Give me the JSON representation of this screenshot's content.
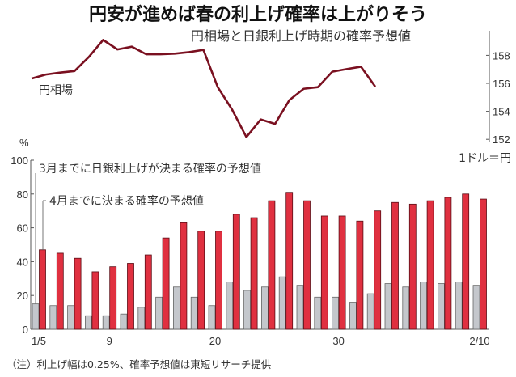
{
  "title": "円安が進めば春の利上げ確率は上がりそう",
  "subtitle": "円相場と日銀利上げ時期の確率予想値",
  "note": "（注）利上げ幅は0.25%、確率予想値は東短リサーチ提供",
  "chart_data": [
    {
      "type": "line",
      "series": [
        {
          "name": "円相場",
          "values": [
            156.34,
            156.63,
            156.77,
            156.88,
            157.88,
            159.1,
            158.42,
            158.62,
            158.08,
            158.08,
            158.12,
            158.23,
            158.39,
            155.73,
            154.13,
            152.16,
            153.42,
            153.1,
            154.8,
            155.61,
            155.73,
            156.83,
            157.02,
            157.19,
            155.76
          ],
          "color": "#7a1020"
        }
      ],
      "yaxis": {
        "side": "right",
        "ylim": [
          151.6,
          160
        ],
        "ticks": [
          152,
          154,
          156,
          158
        ],
        "unit_label": "1ドル＝円"
      },
      "grid": false
    },
    {
      "type": "bar",
      "x_tick_labels": [
        {
          "index": 0,
          "label": "1/5"
        },
        {
          "index": 4,
          "label": "9"
        },
        {
          "index": 10,
          "label": "20"
        },
        {
          "index": 17,
          "label": "30"
        },
        {
          "index": 25,
          "label": "2/10"
        }
      ],
      "series": [
        {
          "name": "3月までに日銀利上げが決まる確率の予想値",
          "color": "#c4c7cc",
          "values": [
            15,
            14,
            14,
            8,
            8,
            9,
            13,
            19,
            25,
            19,
            14,
            28,
            23,
            25,
            31,
            26,
            19,
            19,
            16,
            21,
            27,
            25,
            28,
            27,
            28,
            26
          ]
        },
        {
          "name": "4月までに決まる確率の予想値",
          "color": "#e03040",
          "values": [
            47,
            45,
            42,
            34,
            37,
            39,
            44,
            54,
            63,
            58,
            58,
            68,
            66,
            76,
            81,
            76,
            67,
            67,
            64,
            70,
            75,
            74,
            76,
            78,
            80,
            77
          ]
        }
      ],
      "ylabel": "%",
      "ylim": [
        0,
        100
      ],
      "yticks": [
        0,
        20,
        40,
        60,
        80,
        100
      ],
      "grid": false
    }
  ]
}
